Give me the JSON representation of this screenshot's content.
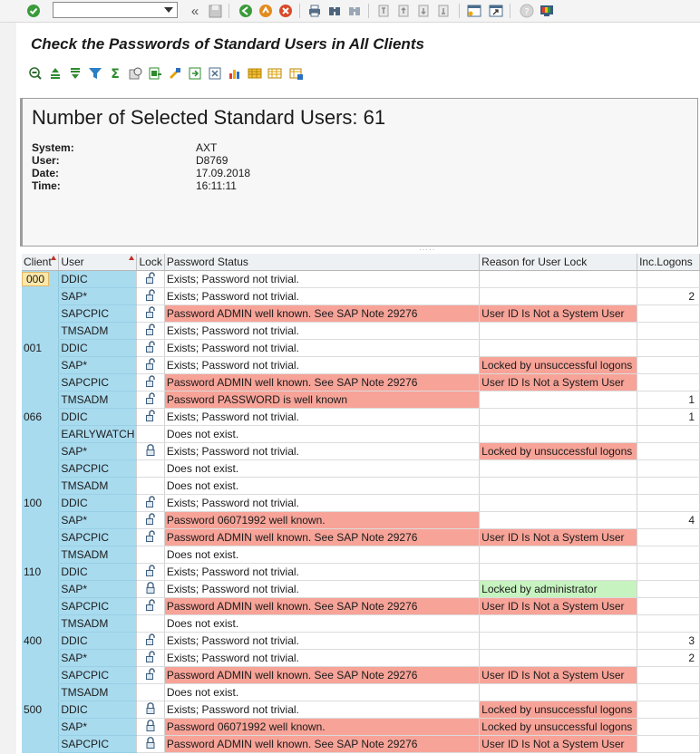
{
  "command_field": {
    "value": "",
    "placeholder": ""
  },
  "toolbar_icons": [
    "enter-icon",
    "back-double-arrow-icon",
    "save-icon",
    "back-icon",
    "exit-icon",
    "cancel-icon",
    "print-icon",
    "find-icon",
    "find-next-icon",
    "first-page-icon",
    "previous-page-icon",
    "next-page-icon",
    "last-page-icon",
    "new-session-icon",
    "shortcut-icon",
    "help-icon",
    "layout-icon"
  ],
  "title": "Check the Passwords of Standard Users in All Clients",
  "app_toolbar_icons": [
    "details-icon",
    "sort-ascending-icon",
    "sort-descending-icon",
    "filter-icon",
    "total-icon",
    "subtotal-icon",
    "export-icon",
    "word-processing-icon",
    "abc-analysis-icon",
    "graphic-icon",
    "layout-change-icon",
    "layout-select-icon",
    "layout-save-icon",
    "info-icon"
  ],
  "header": {
    "count_text": "Number of Selected Standard Users: 61",
    "fields": [
      {
        "label": "System:",
        "value": "AXT"
      },
      {
        "label": "User:",
        "value": "D8769"
      },
      {
        "label": "Date:",
        "value": "17.09.2018"
      },
      {
        "label": "Time:",
        "value": "16:11:11"
      }
    ]
  },
  "table": {
    "columns": [
      "Client",
      "User",
      "Lock",
      "Password Status",
      "Reason for User Lock",
      "Inc.Logons"
    ],
    "rows": [
      {
        "client": "000",
        "user": "DDIC",
        "lock": "unlocked",
        "status": "Exists; Password not trivial.",
        "status_flag": "",
        "reason": "",
        "reason_flag": "",
        "logons": ""
      },
      {
        "client": "",
        "user": "SAP*",
        "lock": "unlocked",
        "status": "Exists; Password not trivial.",
        "status_flag": "",
        "reason": "",
        "reason_flag": "",
        "logons": "2"
      },
      {
        "client": "",
        "user": "SAPCPIC",
        "lock": "unlocked",
        "status": "Password ADMIN well known. See SAP Note 29276",
        "status_flag": "red",
        "reason": "User ID Is Not a System User",
        "reason_flag": "red",
        "logons": ""
      },
      {
        "client": "",
        "user": "TMSADM",
        "lock": "unlocked",
        "status": "Exists; Password not trivial.",
        "status_flag": "",
        "reason": "",
        "reason_flag": "",
        "logons": ""
      },
      {
        "client": "001",
        "user": "DDIC",
        "lock": "unlocked",
        "status": "Exists; Password not trivial.",
        "status_flag": "",
        "reason": "",
        "reason_flag": "",
        "logons": ""
      },
      {
        "client": "",
        "user": "SAP*",
        "lock": "unlocked",
        "status": "Exists; Password not trivial.",
        "status_flag": "",
        "reason": "Locked by unsuccessful logons",
        "reason_flag": "red",
        "logons": ""
      },
      {
        "client": "",
        "user": "SAPCPIC",
        "lock": "unlocked",
        "status": "Password ADMIN well known. See SAP Note 29276",
        "status_flag": "red",
        "reason": "User ID Is Not a System User",
        "reason_flag": "red",
        "logons": ""
      },
      {
        "client": "",
        "user": "TMSADM",
        "lock": "unlocked",
        "status": "Password PASSWORD is well known",
        "status_flag": "red",
        "reason": "",
        "reason_flag": "",
        "logons": "1"
      },
      {
        "client": "066",
        "user": "DDIC",
        "lock": "unlocked",
        "status": "Exists; Password not trivial.",
        "status_flag": "",
        "reason": "",
        "reason_flag": "",
        "logons": "1"
      },
      {
        "client": "",
        "user": "EARLYWATCH",
        "lock": "none",
        "status": "Does not exist.",
        "status_flag": "",
        "reason": "",
        "reason_flag": "",
        "logons": ""
      },
      {
        "client": "",
        "user": "SAP*",
        "lock": "locked",
        "status": "Exists; Password not trivial.",
        "status_flag": "",
        "reason": "Locked by unsuccessful logons",
        "reason_flag": "red",
        "logons": ""
      },
      {
        "client": "",
        "user": "SAPCPIC",
        "lock": "none",
        "status": "Does not exist.",
        "status_flag": "",
        "reason": "",
        "reason_flag": "",
        "logons": ""
      },
      {
        "client": "",
        "user": "TMSADM",
        "lock": "none",
        "status": "Does not exist.",
        "status_flag": "",
        "reason": "",
        "reason_flag": "",
        "logons": ""
      },
      {
        "client": "100",
        "user": "DDIC",
        "lock": "unlocked",
        "status": "Exists; Password not trivial.",
        "status_flag": "",
        "reason": "",
        "reason_flag": "",
        "logons": ""
      },
      {
        "client": "",
        "user": "SAP*",
        "lock": "unlocked",
        "status": "Password 06071992 well known.",
        "status_flag": "red",
        "reason": "",
        "reason_flag": "",
        "logons": "4"
      },
      {
        "client": "",
        "user": "SAPCPIC",
        "lock": "unlocked",
        "status": "Password ADMIN well known. See SAP Note 29276",
        "status_flag": "red",
        "reason": "User ID Is Not a System User",
        "reason_flag": "red",
        "logons": ""
      },
      {
        "client": "",
        "user": "TMSADM",
        "lock": "none",
        "status": "Does not exist.",
        "status_flag": "",
        "reason": "",
        "reason_flag": "",
        "logons": ""
      },
      {
        "client": "110",
        "user": "DDIC",
        "lock": "unlocked",
        "status": "Exists; Password not trivial.",
        "status_flag": "",
        "reason": "",
        "reason_flag": "",
        "logons": ""
      },
      {
        "client": "",
        "user": "SAP*",
        "lock": "locked",
        "status": "Exists; Password not trivial.",
        "status_flag": "",
        "reason": "Locked by administrator",
        "reason_flag": "green",
        "logons": ""
      },
      {
        "client": "",
        "user": "SAPCPIC",
        "lock": "unlocked",
        "status": "Password ADMIN well known. See SAP Note 29276",
        "status_flag": "red",
        "reason": "User ID Is Not a System User",
        "reason_flag": "red",
        "logons": ""
      },
      {
        "client": "",
        "user": "TMSADM",
        "lock": "none",
        "status": "Does not exist.",
        "status_flag": "",
        "reason": "",
        "reason_flag": "",
        "logons": ""
      },
      {
        "client": "400",
        "user": "DDIC",
        "lock": "unlocked",
        "status": "Exists; Password not trivial.",
        "status_flag": "",
        "reason": "",
        "reason_flag": "",
        "logons": "3"
      },
      {
        "client": "",
        "user": "SAP*",
        "lock": "unlocked",
        "status": "Exists; Password not trivial.",
        "status_flag": "",
        "reason": "",
        "reason_flag": "",
        "logons": "2"
      },
      {
        "client": "",
        "user": "SAPCPIC",
        "lock": "unlocked",
        "status": "Password ADMIN well known. See SAP Note 29276",
        "status_flag": "red",
        "reason": "User ID Is Not a System User",
        "reason_flag": "red",
        "logons": ""
      },
      {
        "client": "",
        "user": "TMSADM",
        "lock": "none",
        "status": "Does not exist.",
        "status_flag": "",
        "reason": "",
        "reason_flag": "",
        "logons": ""
      },
      {
        "client": "500",
        "user": "DDIC",
        "lock": "locked",
        "status": "Exists; Password not trivial.",
        "status_flag": "",
        "reason": "Locked by unsuccessful logons",
        "reason_flag": "red",
        "logons": ""
      },
      {
        "client": "",
        "user": "SAP*",
        "lock": "locked",
        "status": "Password 06071992 well known.",
        "status_flag": "red",
        "reason": "Locked by unsuccessful logons",
        "reason_flag": "red",
        "logons": ""
      },
      {
        "client": "",
        "user": "SAPCPIC",
        "lock": "locked",
        "status": "Password ADMIN well known. See SAP Note 29276",
        "status_flag": "red",
        "reason": "User ID Is Not a System User",
        "reason_flag": "red",
        "logons": ""
      }
    ]
  },
  "colors": {
    "key_cell": "#a9dbef",
    "error": "#f7a398",
    "ok": "#c6f3bf",
    "selected": "#fde8a8"
  }
}
